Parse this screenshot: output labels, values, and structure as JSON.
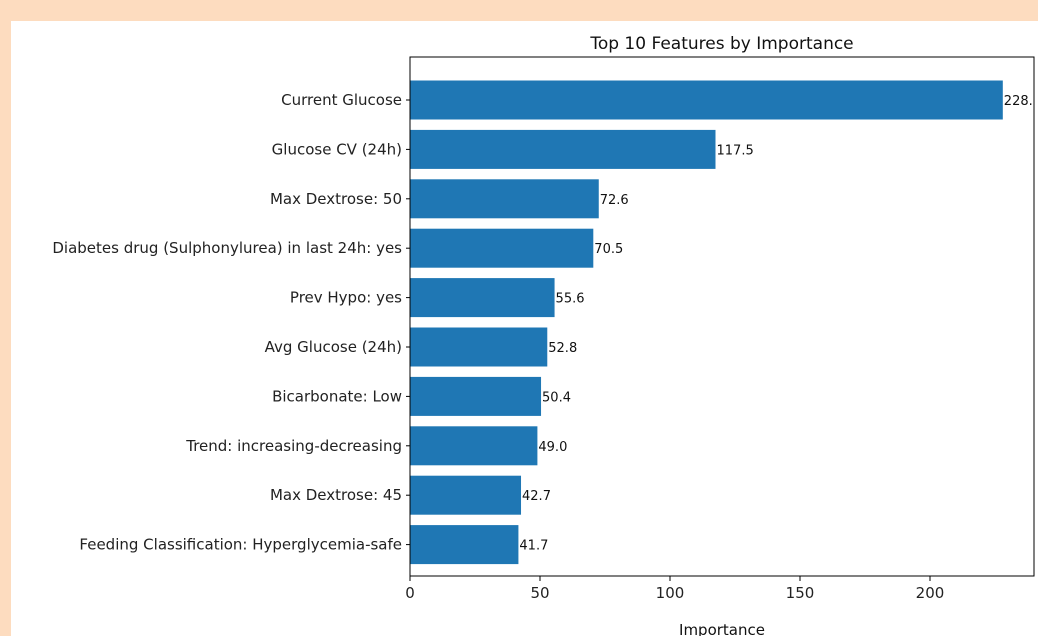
{
  "chart_data": {
    "type": "bar",
    "orientation": "horizontal",
    "title": "Top 10 Features by Importance",
    "xlabel": "Importance",
    "ylabel": "",
    "xlim": [
      0,
      240
    ],
    "xticks": [
      0,
      50,
      100,
      150,
      200
    ],
    "grid": false,
    "legend": "none",
    "bar_color": "#1f77b4",
    "categories": [
      "Current Glucose",
      "Glucose CV (24h)",
      "Max Dextrose: 50",
      "Diabetes drug (Sulphonylurea) in last 24h: yes",
      "Prev Hypo: yes",
      "Avg Glucose (24h)",
      "Bicarbonate: Low",
      "Trend: increasing-decreasing",
      "Max Dextrose: 45",
      "Feeding Classification: Hyperglycemia-safe"
    ],
    "values": [
      228.0,
      117.5,
      72.6,
      70.5,
      55.6,
      52.8,
      50.4,
      49.0,
      42.7,
      41.7
    ],
    "value_labels": [
      "228.",
      "117.5",
      "72.6",
      "70.5",
      "55.6",
      "52.8",
      "50.4",
      "49.0",
      "42.7",
      "41.7"
    ]
  }
}
